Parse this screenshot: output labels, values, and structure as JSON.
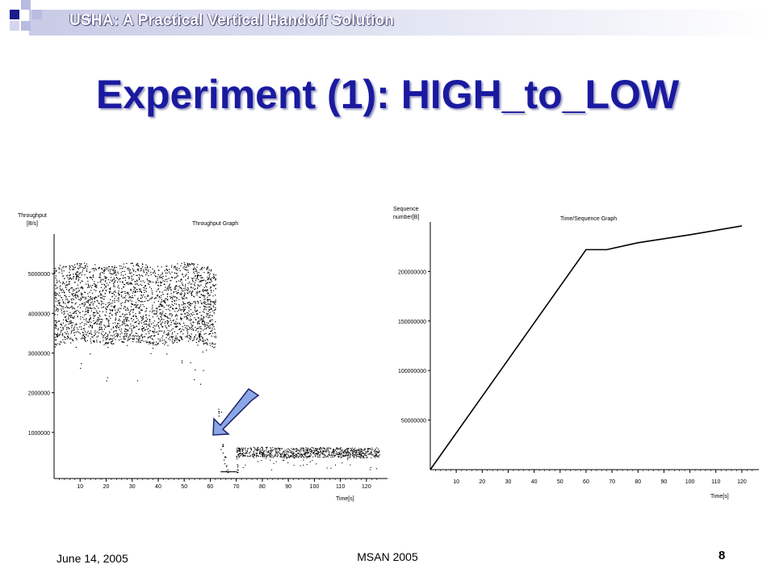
{
  "header": {
    "title": "USHA: A Practical Vertical Handoff Solution"
  },
  "slide": {
    "title": "Experiment (1): HIGH_to_LOW"
  },
  "throughput_graph": {
    "title": "Throughput Graph",
    "ylabel_line1": "Throughput",
    "ylabel_line2": "[B/s]",
    "xlabel": "Time[s]",
    "yticks": [
      "5000000",
      "4000000",
      "3000000",
      "2000000",
      "1000000"
    ],
    "xticks": [
      "10",
      "20",
      "30",
      "40",
      "50",
      "60",
      "70",
      "80",
      "90",
      "100",
      "110",
      "120"
    ]
  },
  "sequence_graph": {
    "title": "Time/Sequence Graph",
    "ylabel_line1": "Sequence",
    "ylabel_line2": "number[B]",
    "xlabel": "Time[s]",
    "yticks": [
      "200000000",
      "150000000",
      "100000000",
      "50000000"
    ],
    "xticks": [
      "10",
      "20",
      "30",
      "40",
      "50",
      "60",
      "70",
      "80",
      "90",
      "100",
      "110",
      "120"
    ]
  },
  "chart_data": [
    {
      "type": "scatter",
      "title": "Throughput Graph",
      "ylabel": "Throughput [B/s]",
      "xlabel": "Time[s]",
      "xlim": [
        0,
        125
      ],
      "ylim": [
        0,
        6000000
      ],
      "series": [
        {
          "x": [
            0,
            10,
            20,
            30,
            40,
            50,
            60,
            62
          ],
          "y": [
            4200000,
            4300000,
            4200000,
            4300000,
            4200000,
            4300000,
            4200000,
            4100000
          ]
        },
        {
          "x": [
            63,
            64,
            65,
            66,
            70
          ],
          "y": [
            1500000,
            600000,
            300000,
            50000,
            20000
          ]
        },
        {
          "x": [
            70,
            80,
            90,
            100,
            110,
            120,
            125
          ],
          "y": [
            500000,
            520000,
            480000,
            510000,
            500000,
            490000,
            500000
          ]
        }
      ]
    },
    {
      "type": "line",
      "title": "Time/Sequence Graph",
      "ylabel": "Sequence number[B]",
      "xlabel": "Time[s]",
      "xlim": [
        0,
        125
      ],
      "ylim": [
        0,
        250000000
      ],
      "series": [
        {
          "x": [
            0,
            60,
            68,
            80,
            100,
            120
          ],
          "y": [
            0,
            222000000,
            222000000,
            229000000,
            237000000,
            246000000
          ]
        }
      ]
    }
  ],
  "footer": {
    "date": "June 14, 2005",
    "conference": "MSAN 2005",
    "page": "8"
  },
  "colors": {
    "title": "#1a1aa0",
    "arrow_fill": "#8aa8e6",
    "arrow_stroke": "#20206a"
  }
}
